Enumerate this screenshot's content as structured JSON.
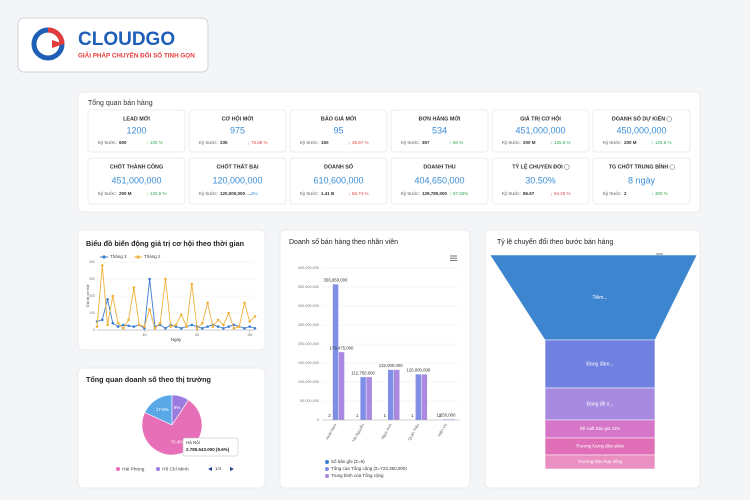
{
  "header": {
    "brand": "CLOUDGO",
    "tagline": "GIẢI PHÁP CHUYỂN ĐỔI SỐ TINH GỌN"
  },
  "overview": {
    "title": "Tổng quan bán hàng",
    "prev_label": "Kỳ trước:",
    "cards": [
      {
        "label": "LEAD MỚI",
        "value": "1200",
        "prev": "600",
        "change": "100 %",
        "trend": "up"
      },
      {
        "label": "CƠ HỘI MỚI",
        "value": "975",
        "prev": "235",
        "change": "75.88 %",
        "trend": "down"
      },
      {
        "label": "BÁO GIÁ MỚI",
        "value": "95",
        "prev": "150",
        "change": "36.67 %",
        "trend": "down"
      },
      {
        "label": "ĐƠN HÀNG MỚI",
        "value": "534",
        "prev": "357",
        "change": "50 %",
        "trend": "up"
      },
      {
        "label": "GIÁ TRỊ CƠ HỘI",
        "value": "451,000,000",
        "prev": "200 M",
        "change": "125.5 %",
        "trend": "up"
      },
      {
        "label": "DOANH SỐ DỰ KIẾN",
        "value": "450,000,000",
        "prev": "200 M",
        "change": "125.5 %",
        "trend": "up",
        "info": true
      },
      {
        "label": "CHỐT THÀNH CÔNG",
        "value": "451,000,000",
        "prev": "200 M",
        "change": "125.5 %",
        "trend": "up"
      },
      {
        "label": "CHỐT THẤT BẠI",
        "value": "120,000,000",
        "prev": "120,000,000",
        "change": "0%",
        "trend": "flat"
      },
      {
        "label": "DOANH SỐ",
        "value": "610,600,000",
        "prev": "1.41 B",
        "change": "56.74 %",
        "trend": "down"
      },
      {
        "label": "DOANH THU",
        "value": "404,650,000",
        "prev": "129,780,000",
        "change": "67.93%",
        "trend": "up"
      },
      {
        "label": "TỶ LỆ CHUYỂN ĐỔI",
        "value": "30.50%",
        "prev": "86.67",
        "change": "64.26 %",
        "trend": "down",
        "info": true
      },
      {
        "label": "TG CHỐT TRUNG BÌNH",
        "value": "8 ngày",
        "prev": "2",
        "change": "300 %",
        "trend": "up",
        "info": true
      }
    ]
  },
  "chart_data": [
    {
      "type": "line",
      "title": "Biểu đồ biến động giá trị cơ hội theo thời gian",
      "x_label": "Ngày",
      "y_label": "Giá trị cơ hội",
      "x": [
        1,
        2,
        3,
        4,
        5,
        6,
        7,
        8,
        9,
        10,
        11,
        12,
        13,
        14,
        15,
        16,
        17,
        18,
        19,
        20,
        21,
        22,
        23,
        24,
        25,
        26,
        27,
        28,
        29,
        30,
        31
      ],
      "xlim": [
        1,
        31
      ],
      "xticks": [
        10,
        20,
        30
      ],
      "ylim": [
        0,
        400
      ],
      "yticks": [
        0,
        100,
        200,
        300,
        400
      ],
      "series": [
        {
          "name": "Tháng 3",
          "color": "#3b7fd1",
          "values": [
            50,
            60,
            180,
            40,
            20,
            30,
            25,
            20,
            30,
            10,
            300,
            20,
            30,
            10,
            30,
            20,
            10,
            20,
            30,
            20,
            10,
            20,
            30,
            20,
            10,
            20,
            30,
            20,
            10,
            20,
            10
          ]
        },
        {
          "name": "Tháng 2",
          "color": "#f0b13a",
          "values": [
            20,
            380,
            30,
            200,
            40,
            10,
            60,
            250,
            30,
            20,
            120,
            10,
            40,
            300,
            20,
            30,
            90,
            20,
            270,
            10,
            40,
            160,
            20,
            60,
            30,
            100,
            10,
            20,
            160,
            50,
            80
          ]
        }
      ]
    },
    {
      "type": "pie",
      "title": "Tổng quan doanh số theo thị trường",
      "categories": [
        null,
        "Hồ Chí Minh",
        "Hải Phòng"
      ],
      "values": [
        17.6,
        9,
        70.4
      ],
      "value_labels": [
        "17.6%",
        "9%",
        "70.4%"
      ],
      "colors": [
        "#5aa9e6",
        "#9b7be0",
        "#e66fb8"
      ],
      "tooltip": {
        "name": "Hà Nội",
        "detail": "2.785.543.000 (9.6%)"
      },
      "legend_page": "1/4"
    },
    {
      "type": "bar",
      "title": "Doanh số bán hàng theo nhân viên",
      "categories": [
        "Hoài Nam",
        "Hà Nguyễn",
        "Ngọc Anh",
        "Quân Trần",
        "Hiền Vũ"
      ],
      "ylim": [
        0,
        400000000
      ],
      "yticks": [
        {
          "value": 0,
          "label": "0"
        },
        {
          "value": 50000000,
          "label": "50,000,000"
        },
        {
          "value": 100000000,
          "label": "100,000,000"
        },
        {
          "value": 150000000,
          "label": "150,000,000"
        },
        {
          "value": 200000000,
          "label": "200,000,000"
        },
        {
          "value": 250000000,
          "label": "250,000,000"
        },
        {
          "value": 300000000,
          "label": "300,000,000"
        },
        {
          "value": 350000000,
          "label": "350,000,000"
        },
        {
          "value": 400000000,
          "label": "400,000,000"
        }
      ],
      "series": [
        {
          "name": "Số bản ghi (Σ=6)",
          "color": "#3b7fd1",
          "values": [
            2,
            1,
            1,
            1,
            1
          ]
        },
        {
          "name": "Tổng của Tổng cộng (Σ=723,350,000)",
          "color": "#7f8fe6",
          "values": [
            356950000,
            112750000,
            132000000,
            120000000,
            1650000
          ],
          "value_labels": [
            "356,950,000",
            "112,750,000",
            "132,000,000",
            "120,000,000",
            "1,650,000"
          ]
        },
        {
          "name": "Trung bình của Tổng cộng",
          "color": "#a98ae0",
          "values": [
            178475000,
            112750000,
            132000000,
            120000000,
            1650000
          ],
          "value_labels": [
            "178,475,000",
            null,
            null,
            null,
            null
          ]
        }
      ]
    },
    {
      "type": "funnel",
      "title": "Tỷ lệ chuyển đổi theo bước bán hàng",
      "categories": [
        "Tiềm...",
        "Đang đàm...",
        "Đang đề x...",
        "Đề xuất Báo giá 22%",
        "Thương lượng đàm phán",
        "Thương thảo hợp đồng"
      ],
      "colors": [
        "#3d86cf",
        "#6f80e0",
        "#a88be0",
        "#d576c8",
        "#e06fb8",
        "#ea8fc2"
      ]
    }
  ]
}
